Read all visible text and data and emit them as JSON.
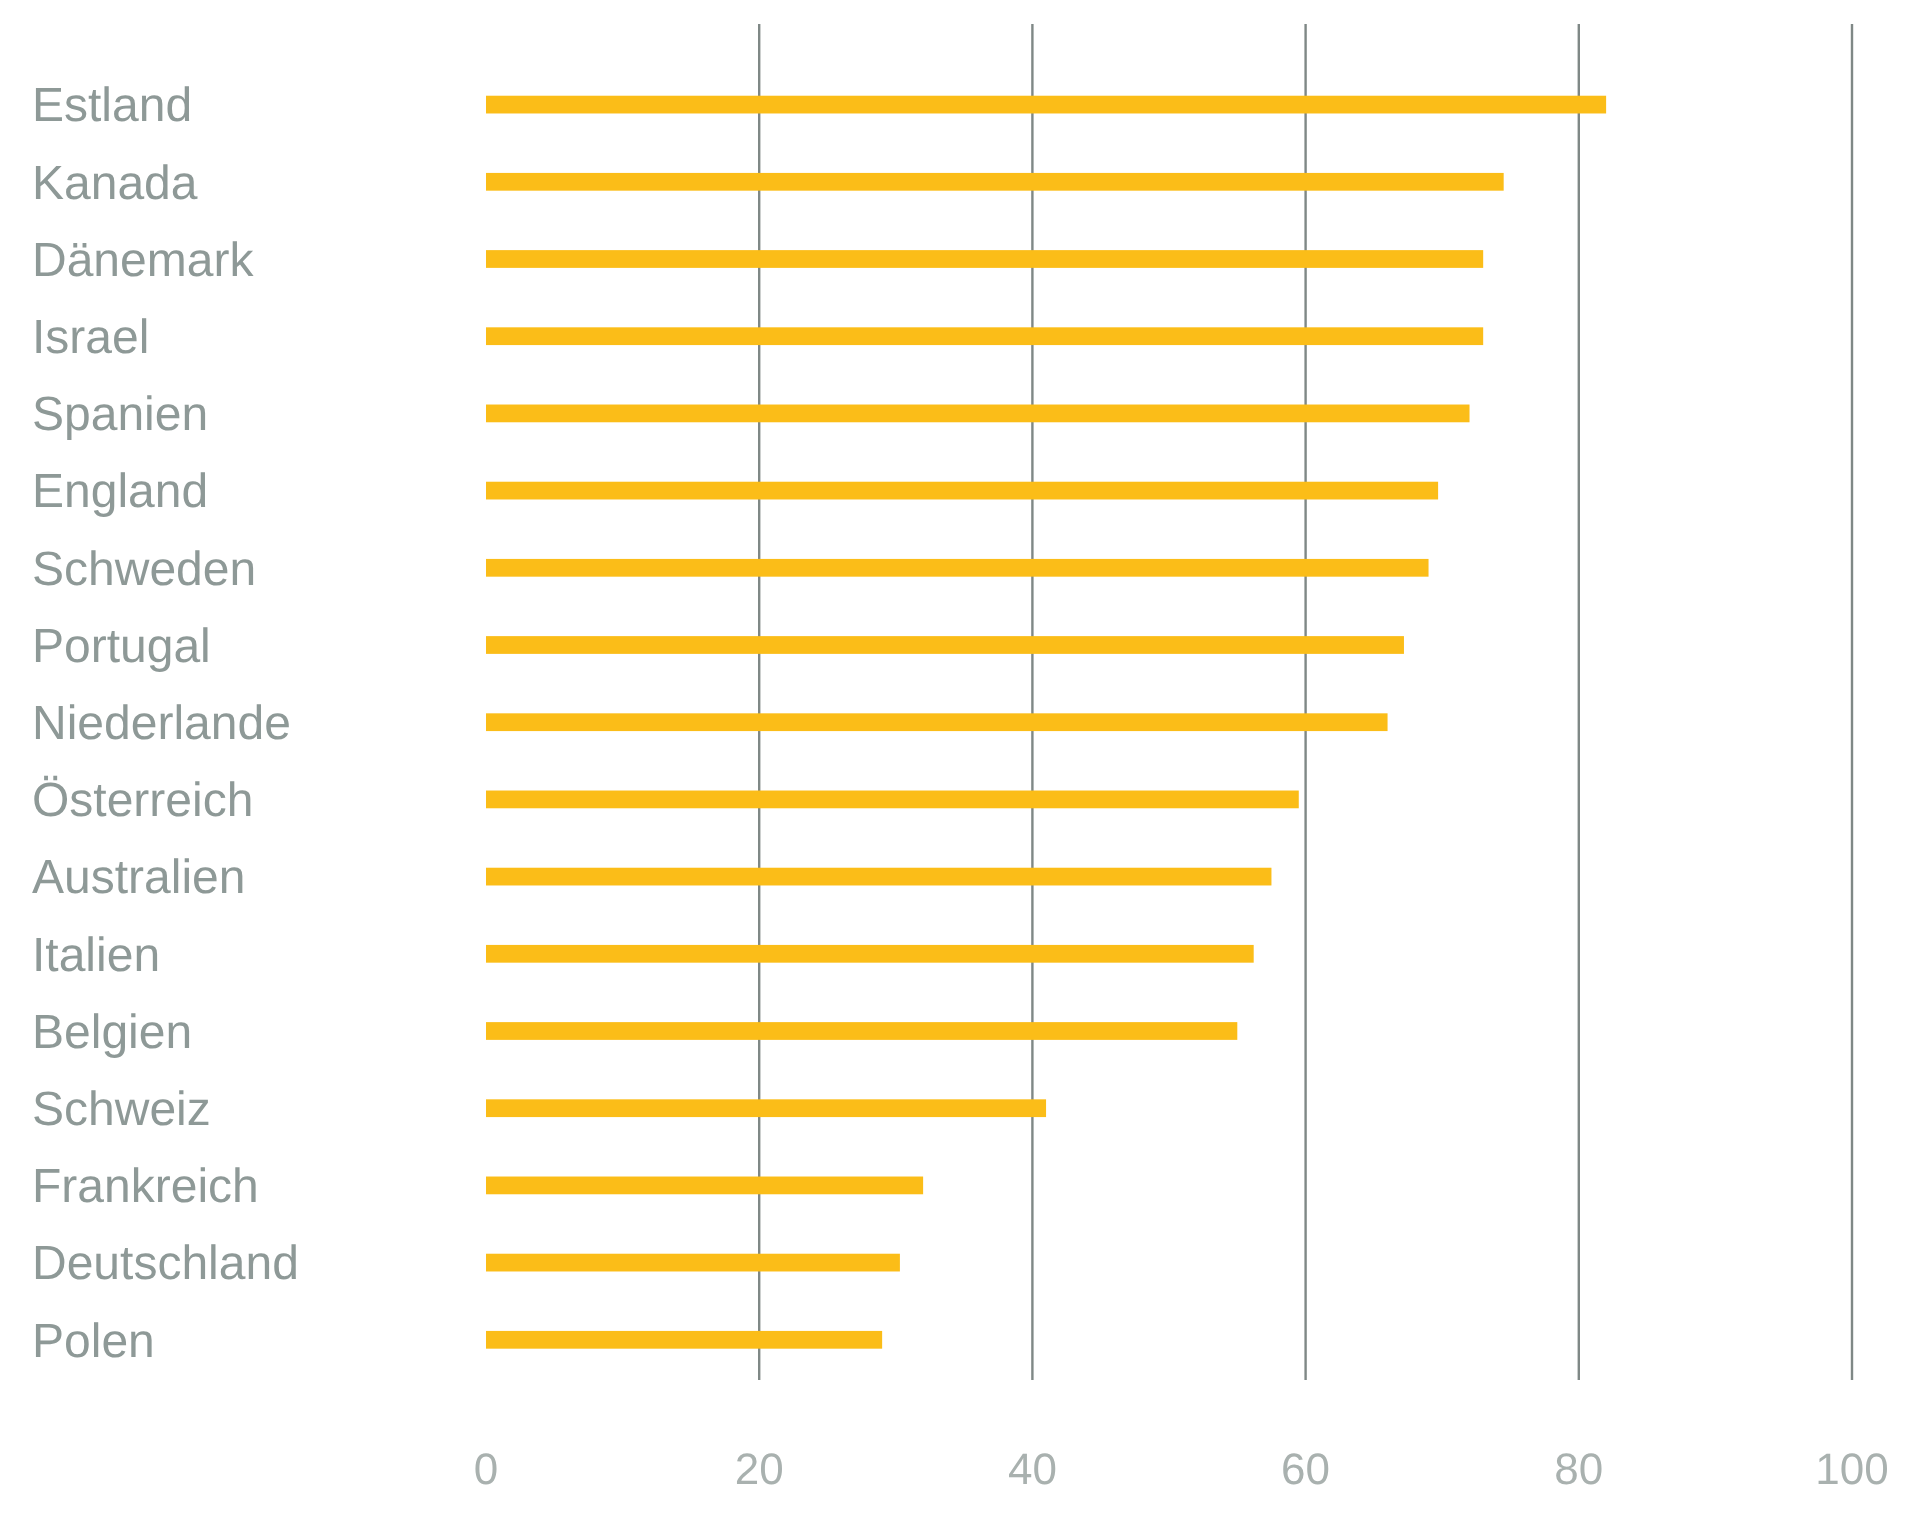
{
  "chart_data": {
    "type": "bar",
    "orientation": "horizontal",
    "categories": [
      "Estland",
      "Kanada",
      "Dänemark",
      "Israel",
      "Spanien",
      "England",
      "Schweden",
      "Portugal",
      "Niederlande",
      "Österreich",
      "Australien",
      "Italien",
      "Belgien",
      "Schweiz",
      "Frankreich",
      "Deutschland",
      "Polen"
    ],
    "values": [
      82,
      74.5,
      73,
      73,
      72,
      69.7,
      69,
      67.2,
      66,
      59.5,
      57.5,
      56.2,
      55,
      41,
      32,
      30.3,
      29
    ],
    "color": "#fbbd18",
    "xlim": [
      0,
      100
    ],
    "xticks": [
      0,
      20,
      40,
      60,
      80,
      100
    ],
    "grid": "x"
  }
}
